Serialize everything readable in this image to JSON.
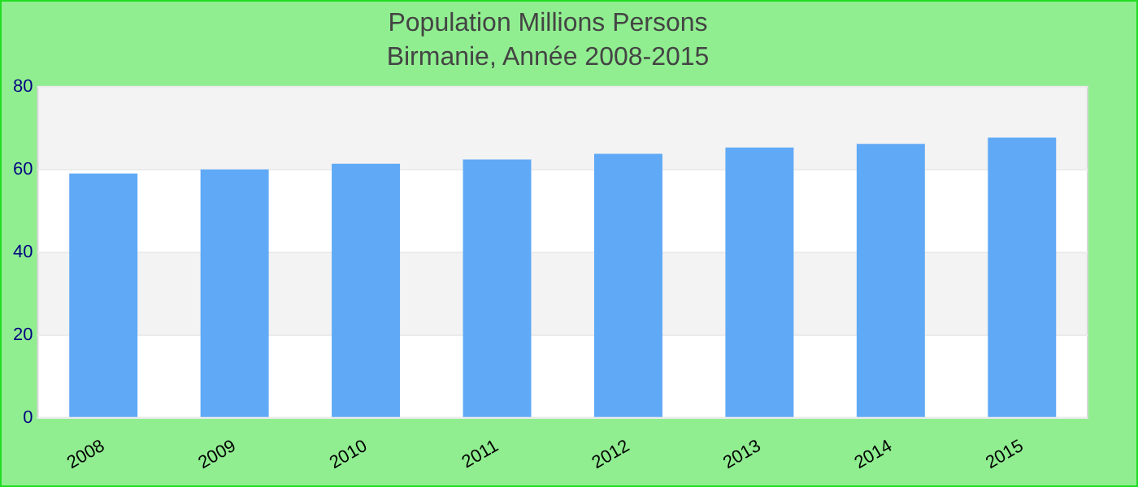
{
  "chart_data": {
    "type": "bar",
    "title": "Population Millions Persons",
    "subtitle": "Birmanie, Année 2008-2015",
    "categories": [
      "2008",
      "2009",
      "2010",
      "2011",
      "2012",
      "2013",
      "2014",
      "2015"
    ],
    "values": [
      59.0,
      60.0,
      61.4,
      62.4,
      63.8,
      65.3,
      66.2,
      67.7
    ],
    "color": "#60a9f6",
    "ylim": [
      0,
      80
    ],
    "yticks": [
      0,
      20,
      40,
      60,
      80
    ],
    "grid": "y",
    "legend": false
  }
}
